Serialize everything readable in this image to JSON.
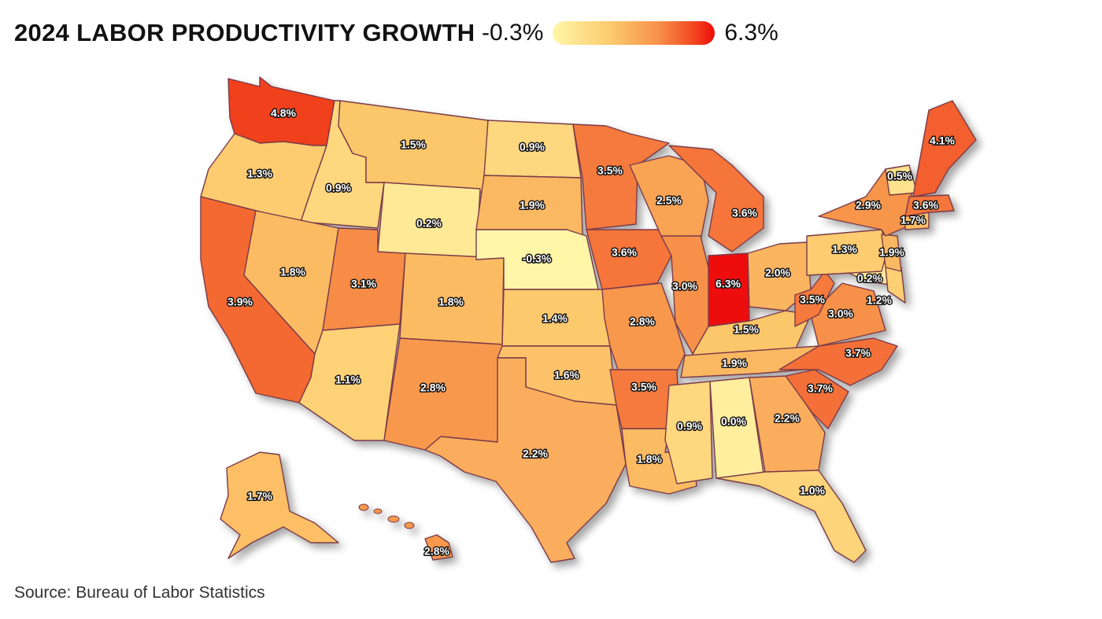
{
  "title": "2024 LABOR PRODUCTIVITY GROWTH",
  "legend": {
    "min_label": "-0.3%",
    "max_label": "6.3%",
    "min_value": -0.3,
    "max_value": 6.3,
    "colors": [
      "#FFF6A8",
      "#FDCB6E",
      "#F7914A",
      "#F1441E",
      "#EE0A0A"
    ]
  },
  "source": "Source: Bureau of Labor Statistics",
  "map_style": {
    "border_color": "#7a3b4a",
    "shadow": true
  },
  "states": [
    {
      "code": "WA",
      "label": "4.8%",
      "value": 4.8
    },
    {
      "code": "OR",
      "label": "1.3%",
      "value": 1.3
    },
    {
      "code": "CA",
      "label": "3.9%",
      "value": 3.9
    },
    {
      "code": "ID",
      "label": "0.9%",
      "value": 0.9
    },
    {
      "code": "NV",
      "label": "1.8%",
      "value": 1.8
    },
    {
      "code": "MT",
      "label": "1.5%",
      "value": 1.5
    },
    {
      "code": "WY",
      "label": "0.2%",
      "value": 0.2
    },
    {
      "code": "UT",
      "label": "3.1%",
      "value": 3.1
    },
    {
      "code": "AZ",
      "label": "1.1%",
      "value": 1.1
    },
    {
      "code": "CO",
      "label": "1.8%",
      "value": 1.8
    },
    {
      "code": "NM",
      "label": "2.8%",
      "value": 2.8
    },
    {
      "code": "ND",
      "label": "0.9%",
      "value": 0.9
    },
    {
      "code": "SD",
      "label": "1.9%",
      "value": 1.9
    },
    {
      "code": "NE",
      "label": "-0.3%",
      "value": -0.3
    },
    {
      "code": "KS",
      "label": "1.4%",
      "value": 1.4
    },
    {
      "code": "OK",
      "label": "1.6%",
      "value": 1.6
    },
    {
      "code": "TX",
      "label": "2.2%",
      "value": 2.2
    },
    {
      "code": "MN",
      "label": "3.5%",
      "value": 3.5
    },
    {
      "code": "IA",
      "label": "3.6%",
      "value": 3.6
    },
    {
      "code": "MO",
      "label": "2.8%",
      "value": 2.8
    },
    {
      "code": "AR",
      "label": "3.5%",
      "value": 3.5
    },
    {
      "code": "LA",
      "label": "1.8%",
      "value": 1.8
    },
    {
      "code": "WI",
      "label": "2.5%",
      "value": 2.5
    },
    {
      "code": "IL",
      "label": "3.0%",
      "value": 3.0
    },
    {
      "code": "MI",
      "label": "3.6%",
      "value": 3.6
    },
    {
      "code": "IN",
      "label": "6.3%",
      "value": 6.3
    },
    {
      "code": "OH",
      "label": "2.0%",
      "value": 2.0
    },
    {
      "code": "KY",
      "label": "1.5%",
      "value": 1.5
    },
    {
      "code": "TN",
      "label": "1.9%",
      "value": 1.9
    },
    {
      "code": "MS",
      "label": "0.9%",
      "value": 0.9
    },
    {
      "code": "AL",
      "label": "0.0%",
      "value": 0.0
    },
    {
      "code": "GA",
      "label": "2.2%",
      "value": 2.2
    },
    {
      "code": "FL",
      "label": "1.0%",
      "value": 1.0
    },
    {
      "code": "SC",
      "label": "3.7%",
      "value": 3.7
    },
    {
      "code": "NC",
      "label": "3.7%",
      "value": 3.7
    },
    {
      "code": "VA",
      "label": "3.0%",
      "value": 3.0
    },
    {
      "code": "WV",
      "label": "3.5%",
      "value": 3.5
    },
    {
      "code": "MD",
      "label": "0.2%",
      "value": 0.2
    },
    {
      "code": "DE",
      "label": "1.2%",
      "value": 1.2
    },
    {
      "code": "PA",
      "label": "1.3%",
      "value": 1.3
    },
    {
      "code": "NJ",
      "label": "1.9%",
      "value": 1.9
    },
    {
      "code": "NY",
      "label": "2.9%",
      "value": 2.9
    },
    {
      "code": "CT",
      "label": "1.7%",
      "value": 1.7
    },
    {
      "code": "MA",
      "label": "3.6%",
      "value": 3.6
    },
    {
      "code": "VT",
      "label": "0.5%",
      "value": 0.5
    },
    {
      "code": "ME",
      "label": "4.1%",
      "value": 4.1
    },
    {
      "code": "AK",
      "label": "1.7%",
      "value": 1.7
    },
    {
      "code": "HI",
      "label": "2.8%",
      "value": 2.8
    }
  ]
}
